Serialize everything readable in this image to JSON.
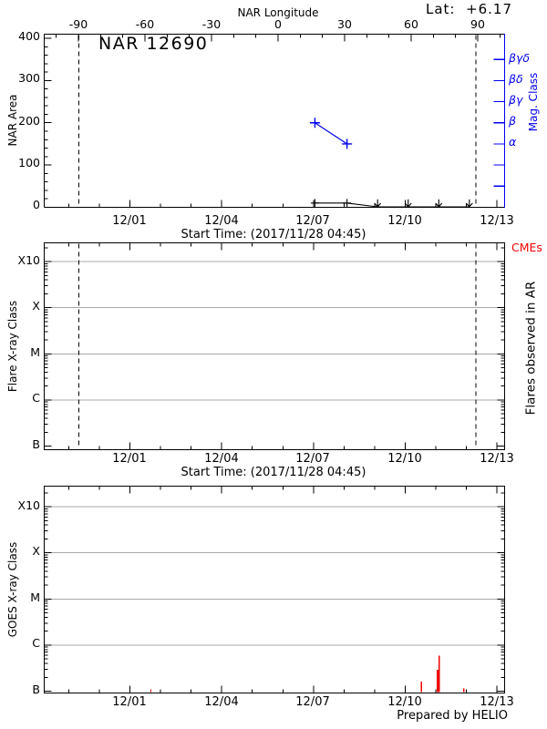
{
  "header": {
    "title": "NAR 12690",
    "lat_text": "Lat:  +6.17",
    "prepared_by": "Prepared by HELIO"
  },
  "colors": {
    "magnetogram_blue": "#0000ee",
    "flare_red": "#ee0000",
    "gridline_gray": "#a8a8a8",
    "axis_black": "#000000"
  },
  "chart_data": [
    {
      "type": "line",
      "panel": "nar-area-and-mag-class",
      "title": "NAR 12690",
      "lat": "+6.17",
      "xlabel": "Start Time: (2017/11/28 04:45)",
      "x_start": "2017/11/28 04:45",
      "x_range_days": [
        0,
        15.05
      ],
      "x_ticks": [
        "12/01",
        "12/04",
        "12/07",
        "12/10",
        "12/13"
      ],
      "top_axis": {
        "label": "NAR Longitude",
        "tick_labels": [
          "-90",
          "-60",
          "-30",
          "0",
          "30",
          "60",
          "90"
        ],
        "tick_values": [
          -90,
          -60,
          -30,
          0,
          30,
          60,
          90
        ]
      },
      "left_axis": {
        "label": "NAR Area",
        "range": [
          0,
          430
        ],
        "tick_labels": [
          "0",
          "100",
          "200",
          "300",
          "400"
        ],
        "tick_values": [
          0,
          100,
          200,
          300,
          400
        ]
      },
      "right_axis": {
        "label": "Mag. Class",
        "tick_labels": [
          "βγδ",
          "βδ",
          "βγ",
          "β",
          "α"
        ],
        "tick_values": [
          350,
          300,
          250,
          200,
          150
        ],
        "minor_tick_values": [
          50,
          100
        ]
      },
      "limb_crossing_days": [
        1.14,
        14.12
      ],
      "series": [
        {
          "name": "nar_area",
          "color": "#000000",
          "marker": "plus",
          "t_days": [
            8.85,
            9.9,
            10.9,
            11.9,
            12.9,
            13.9
          ],
          "dates": [
            "12/07",
            "12/08",
            "12/09",
            "12/10",
            "12/11",
            "12/12"
          ],
          "values": [
            10,
            10,
            0,
            0,
            0,
            0
          ],
          "zero_upper_limit": [
            false,
            false,
            true,
            true,
            true,
            true
          ]
        },
        {
          "name": "mag_class",
          "color": "#0000ee",
          "marker": "plus",
          "t_days": [
            8.85,
            9.9
          ],
          "dates": [
            "12/07",
            "12/08"
          ],
          "values": [
            200,
            150
          ],
          "class_labels": [
            "β",
            "α"
          ]
        }
      ]
    },
    {
      "type": "line",
      "panel": "flares-observed-in-ar",
      "xlabel": "Start Time: (2017/11/28 04:45)",
      "x_ticks": [
        "12/01",
        "12/04",
        "12/07",
        "12/10",
        "12/13"
      ],
      "left_axis": {
        "label": "Flare X-ray Class",
        "tick_labels": [
          "X10",
          "X",
          "M",
          "C",
          "B"
        ],
        "log_decades_above_B": [
          4,
          3,
          2,
          1,
          0
        ]
      },
      "right_label": "Flares observed in AR",
      "cme_label": "CMEs",
      "limb_crossing_days": [
        1.14,
        14.12
      ],
      "series": []
    },
    {
      "type": "bar",
      "panel": "goes-xray-flux",
      "x_ticks": [
        "12/01",
        "12/04",
        "12/07",
        "12/10",
        "12/13"
      ],
      "left_axis": {
        "label": "GOES X-ray Class",
        "tick_labels": [
          "X10",
          "X",
          "M",
          "C",
          "B"
        ],
        "log_decades_above_B": [
          4,
          3,
          2,
          1,
          0
        ]
      },
      "flares": [
        {
          "t_days": 3.49,
          "peak_class": "B1.1",
          "peak_flux_b_units": 1.1
        },
        {
          "t_days": 12.33,
          "peak_class": "B1.6",
          "peak_flux_b_units": 1.6
        },
        {
          "t_days": 12.88,
          "peak_class": "B2.9",
          "peak_flux_b_units": 2.9
        },
        {
          "t_days": 12.915,
          "peak_class": "B5.9",
          "peak_flux_b_units": 5.9
        },
        {
          "t_days": 13.72,
          "peak_class": "B1.2",
          "peak_flux_b_units": 1.15
        }
      ]
    }
  ]
}
